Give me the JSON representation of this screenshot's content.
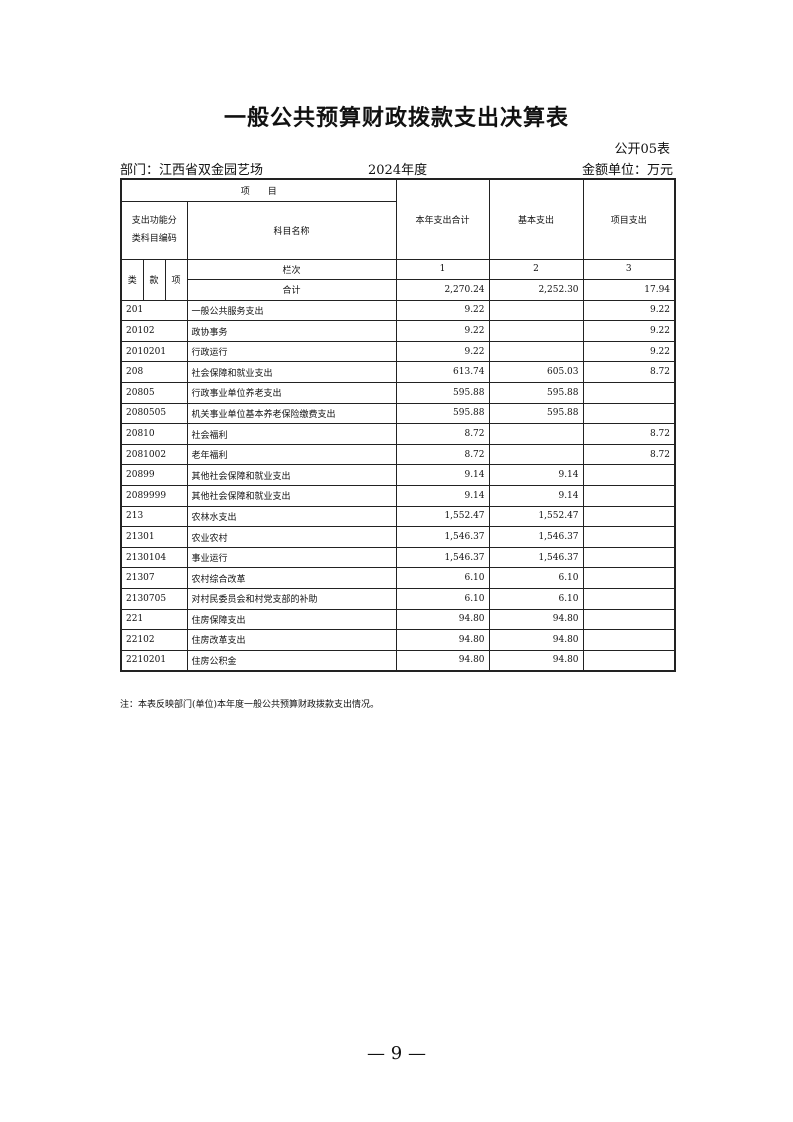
{
  "title": "一般公共预算财政拨款支出决算表",
  "form_no": "公开05表",
  "department": "部门：江西省双金园艺场",
  "year": "2024年度",
  "unit": "金额单位：万元",
  "header": {
    "item": "项　　目",
    "code_label": "支出功能分类科目编码",
    "name_label": "科目名称",
    "col_total": "本年支出合计",
    "col_basic": "基本支出",
    "col_project": "项目支出",
    "lei": "类",
    "kuan": "款",
    "xiang": "项",
    "lanci": "栏次",
    "n1": "1",
    "n2": "2",
    "n3": "3",
    "sum_label": "合计",
    "sum_total": "2,270.24",
    "sum_basic": "2,252.30",
    "sum_project": "17.94"
  },
  "rows": [
    {
      "code": "201",
      "name": "一般公共服务支出",
      "total": "9.22",
      "basic": "",
      "project": "9.22"
    },
    {
      "code": "20102",
      "name": "政协事务",
      "total": "9.22",
      "basic": "",
      "project": "9.22"
    },
    {
      "code": "2010201",
      "name": "行政运行",
      "total": "9.22",
      "basic": "",
      "project": "9.22"
    },
    {
      "code": "208",
      "name": "社会保障和就业支出",
      "total": "613.74",
      "basic": "605.03",
      "project": "8.72"
    },
    {
      "code": "20805",
      "name": "行政事业单位养老支出",
      "total": "595.88",
      "basic": "595.88",
      "project": ""
    },
    {
      "code": "2080505",
      "name": "机关事业单位基本养老保险缴费支出",
      "total": "595.88",
      "basic": "595.88",
      "project": ""
    },
    {
      "code": "20810",
      "name": "社会福利",
      "total": "8.72",
      "basic": "",
      "project": "8.72"
    },
    {
      "code": "2081002",
      "name": "老年福利",
      "total": "8.72",
      "basic": "",
      "project": "8.72"
    },
    {
      "code": "20899",
      "name": "其他社会保障和就业支出",
      "total": "9.14",
      "basic": "9.14",
      "project": ""
    },
    {
      "code": "2089999",
      "name": "其他社会保障和就业支出",
      "total": "9.14",
      "basic": "9.14",
      "project": ""
    },
    {
      "code": "213",
      "name": "农林水支出",
      "total": "1,552.47",
      "basic": "1,552.47",
      "project": ""
    },
    {
      "code": "21301",
      "name": "农业农村",
      "total": "1,546.37",
      "basic": "1,546.37",
      "project": ""
    },
    {
      "code": "2130104",
      "name": "事业运行",
      "total": "1,546.37",
      "basic": "1,546.37",
      "project": ""
    },
    {
      "code": "21307",
      "name": "农村综合改革",
      "total": "6.10",
      "basic": "6.10",
      "project": ""
    },
    {
      "code": "2130705",
      "name": "对村民委员会和村党支部的补助",
      "total": "6.10",
      "basic": "6.10",
      "project": ""
    },
    {
      "code": "221",
      "name": "住房保障支出",
      "total": "94.80",
      "basic": "94.80",
      "project": ""
    },
    {
      "code": "22102",
      "name": "住房改革支出",
      "total": "94.80",
      "basic": "94.80",
      "project": ""
    },
    {
      "code": "2210201",
      "name": "住房公积金",
      "total": "94.80",
      "basic": "94.80",
      "project": ""
    }
  ],
  "note": "注：本表反映部门(单位)本年度一般公共预算财政拨款支出情况。",
  "page_number": "— 9 —"
}
